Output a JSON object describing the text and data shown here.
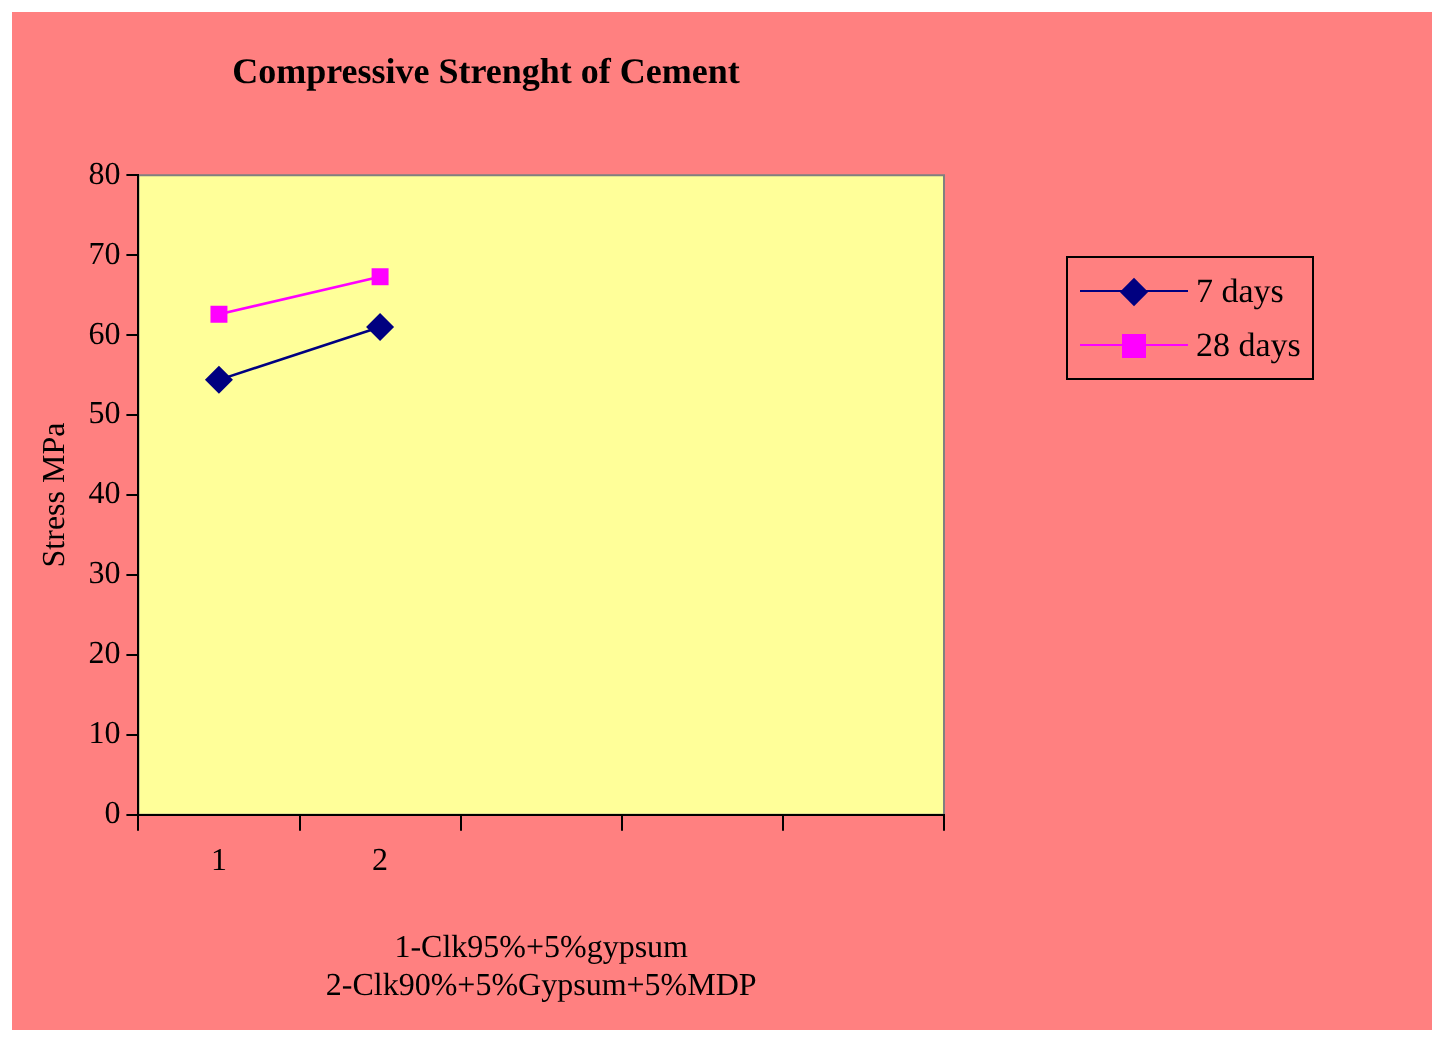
{
  "chart_data": {
    "type": "line",
    "title": "Compressive Strenght of Cement",
    "xlabel": "1-Clk95%+5%gypsum 2-Clk90%+5%Gypsum+5%MDP",
    "ylabel": "Stress MPa",
    "categories": [
      "1",
      "2",
      null,
      null,
      null
    ],
    "series": [
      {
        "name": "7 days",
        "color": "#000080",
        "marker": "diamond",
        "values": [
          54.4,
          61.0,
          null,
          null,
          null
        ]
      },
      {
        "name": "28 days",
        "color": "#ff00ff",
        "marker": "square",
        "values": [
          62.6,
          67.3,
          null,
          null,
          null
        ]
      }
    ],
    "ylim": [
      0,
      80
    ],
    "yticks": [
      0,
      10,
      20,
      30,
      40,
      50,
      60,
      70,
      80
    ],
    "grid": false,
    "legend": "top right"
  }
}
